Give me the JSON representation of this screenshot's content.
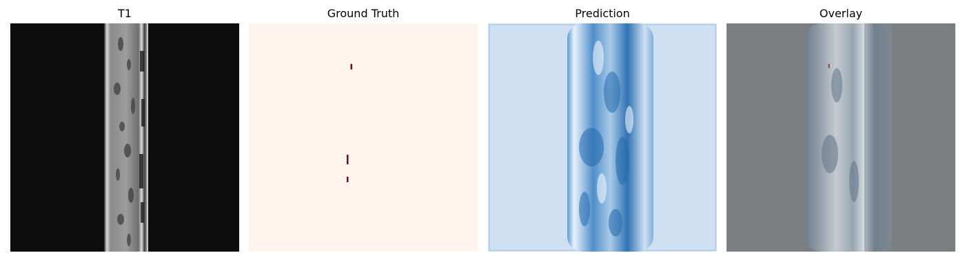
{
  "figure": {
    "panels": [
      {
        "title": "T1",
        "image": "t1-mri-slice"
      },
      {
        "title": "Ground Truth",
        "image": "ground-truth-mask"
      },
      {
        "title": "Prediction",
        "image": "prediction-heatmap"
      },
      {
        "title": "Overlay",
        "image": "overlay-image"
      }
    ]
  },
  "colors": {
    "t1_background": "#0d0d0d",
    "ground_truth_background": "#fff4ee",
    "ground_truth_lesion": "#7a0b1c",
    "prediction_background": "#cfe0f2",
    "prediction_strong": "#2f72b3",
    "overlay_background": "#7d8083"
  }
}
